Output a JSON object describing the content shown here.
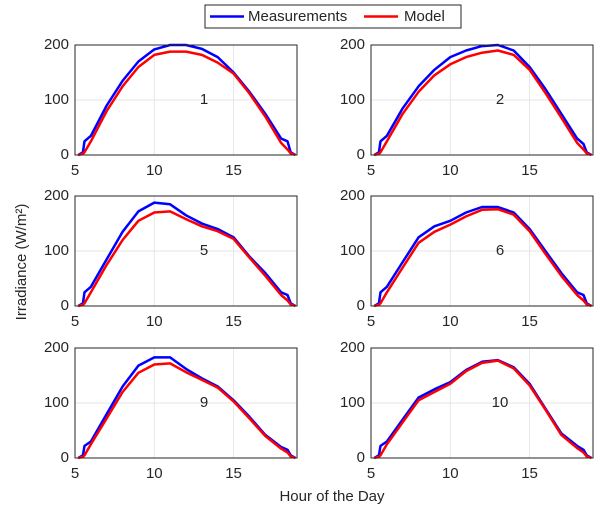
{
  "xlabel": "Hour of the Day",
  "ylabel": "Irradiance (W/m²)",
  "chart_data": [
    {
      "type": "line",
      "annotation": "1",
      "x": [
        5.2,
        5.5,
        5.6,
        6,
        7,
        8,
        9,
        10,
        11,
        12,
        13,
        14,
        15,
        16,
        17,
        18,
        18.4,
        18.6,
        18.9
      ],
      "series": [
        {
          "name": "Measurements",
          "color": "#0000ff",
          "values": [
            0,
            5,
            25,
            35,
            90,
            135,
            170,
            192,
            200,
            200,
            193,
            178,
            150,
            115,
            75,
            30,
            25,
            5,
            0
          ]
        },
        {
          "name": "Model",
          "color": "#ff0000",
          "values": [
            0,
            2,
            5,
            25,
            80,
            125,
            160,
            182,
            188,
            188,
            182,
            168,
            148,
            112,
            70,
            22,
            10,
            3,
            0
          ]
        }
      ],
      "xlim": [
        5,
        19
      ],
      "xticks": [
        5,
        10,
        15
      ],
      "ylim": [
        0,
        200
      ],
      "yticks": [
        0,
        100,
        200
      ],
      "grid": true
    },
    {
      "type": "line",
      "annotation": "2",
      "x": [
        5.2,
        5.5,
        5.6,
        6,
        7,
        8,
        9,
        10,
        11,
        12,
        13,
        14,
        15,
        16,
        17,
        18,
        18.4,
        18.6,
        18.9
      ],
      "series": [
        {
          "name": "Measurements",
          "color": "#0000ff",
          "values": [
            0,
            5,
            25,
            35,
            85,
            125,
            155,
            178,
            190,
            198,
            200,
            190,
            160,
            120,
            75,
            30,
            20,
            5,
            0
          ]
        },
        {
          "name": "Model",
          "color": "#ff0000",
          "values": [
            0,
            2,
            5,
            25,
            75,
            115,
            145,
            165,
            178,
            186,
            190,
            182,
            155,
            113,
            68,
            22,
            10,
            3,
            0
          ]
        }
      ],
      "xlim": [
        5,
        19
      ],
      "xticks": [
        5,
        10,
        15
      ],
      "ylim": [
        0,
        200
      ],
      "yticks": [
        0,
        100,
        200
      ],
      "grid": true
    },
    {
      "type": "line",
      "annotation": "5",
      "x": [
        5.2,
        5.5,
        5.6,
        6,
        7,
        8,
        9,
        10,
        11,
        12,
        13,
        14,
        15,
        16,
        17,
        18,
        18.4,
        18.6,
        18.9
      ],
      "series": [
        {
          "name": "Measurements",
          "color": "#0000ff",
          "values": [
            0,
            5,
            25,
            35,
            85,
            135,
            172,
            188,
            185,
            165,
            150,
            140,
            125,
            90,
            60,
            25,
            20,
            5,
            0
          ]
        },
        {
          "name": "Model",
          "color": "#ff0000",
          "values": [
            0,
            2,
            5,
            25,
            75,
            120,
            155,
            170,
            172,
            158,
            145,
            136,
            122,
            88,
            55,
            20,
            10,
            3,
            0
          ]
        }
      ],
      "xlim": [
        5,
        19
      ],
      "xticks": [
        5,
        10,
        15
      ],
      "ylim": [
        0,
        200
      ],
      "yticks": [
        0,
        100,
        200
      ],
      "grid": true
    },
    {
      "type": "line",
      "annotation": "6",
      "x": [
        5.2,
        5.5,
        5.6,
        6,
        7,
        8,
        9,
        10,
        11,
        12,
        13,
        14,
        15,
        16,
        17,
        18,
        18.4,
        18.6,
        18.9
      ],
      "series": [
        {
          "name": "Measurements",
          "color": "#0000ff",
          "values": [
            0,
            5,
            25,
            35,
            80,
            125,
            145,
            155,
            170,
            180,
            180,
            170,
            140,
            100,
            60,
            25,
            20,
            5,
            0
          ]
        },
        {
          "name": "Model",
          "color": "#ff0000",
          "values": [
            0,
            2,
            5,
            25,
            70,
            115,
            135,
            148,
            163,
            175,
            176,
            166,
            136,
            95,
            55,
            20,
            10,
            3,
            0
          ]
        }
      ],
      "xlim": [
        5,
        19
      ],
      "xticks": [
        5,
        10,
        15
      ],
      "ylim": [
        0,
        200
      ],
      "yticks": [
        0,
        100,
        200
      ],
      "grid": true
    },
    {
      "type": "line",
      "annotation": "9",
      "x": [
        5.2,
        5.5,
        5.6,
        6,
        7,
        8,
        9,
        10,
        11,
        12,
        13,
        14,
        15,
        16,
        17,
        18,
        18.4,
        18.6,
        18.9
      ],
      "series": [
        {
          "name": "Measurements",
          "color": "#0000ff",
          "values": [
            0,
            5,
            22,
            30,
            80,
            130,
            168,
            183,
            183,
            162,
            145,
            130,
            105,
            75,
            42,
            20,
            15,
            5,
            0
          ]
        },
        {
          "name": "Model",
          "color": "#ff0000",
          "values": [
            0,
            2,
            5,
            25,
            72,
            120,
            155,
            170,
            172,
            156,
            142,
            128,
            103,
            72,
            40,
            17,
            10,
            3,
            0
          ]
        }
      ],
      "xlim": [
        5,
        19
      ],
      "xticks": [
        5,
        10,
        15
      ],
      "ylim": [
        0,
        200
      ],
      "yticks": [
        0,
        100,
        200
      ],
      "grid": true
    },
    {
      "type": "line",
      "annotation": "10",
      "x": [
        5.2,
        5.5,
        5.6,
        6,
        7,
        8,
        9,
        10,
        11,
        12,
        13,
        14,
        15,
        16,
        17,
        18,
        18.4,
        18.6,
        18.9
      ],
      "series": [
        {
          "name": "Measurements",
          "color": "#0000ff",
          "values": [
            0,
            5,
            22,
            30,
            70,
            110,
            125,
            138,
            160,
            175,
            178,
            165,
            135,
            90,
            45,
            22,
            15,
            5,
            0
          ]
        },
        {
          "name": "Model",
          "color": "#ff0000",
          "values": [
            0,
            2,
            5,
            25,
            65,
            105,
            120,
            135,
            158,
            173,
            177,
            163,
            132,
            88,
            42,
            18,
            10,
            3,
            0
          ]
        }
      ],
      "xlim": [
        5,
        19
      ],
      "xticks": [
        5,
        10,
        15
      ],
      "ylim": [
        0,
        200
      ],
      "yticks": [
        0,
        100,
        200
      ],
      "grid": true
    }
  ]
}
